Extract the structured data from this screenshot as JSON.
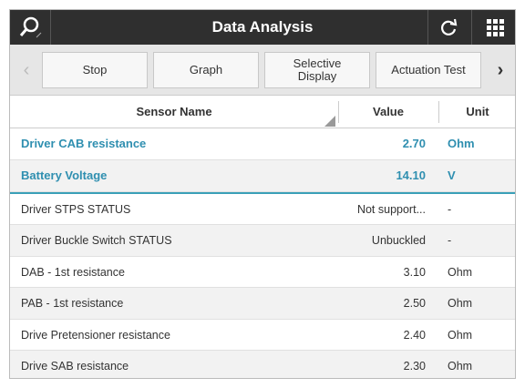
{
  "header": {
    "title": "Data Analysis"
  },
  "toolbar": {
    "buttons": [
      "Stop",
      "Graph",
      "Selective Display",
      "Actuation Test"
    ]
  },
  "table": {
    "columns": [
      "Sensor Name",
      "Value",
      "Unit"
    ],
    "highlighted_rows": [
      [
        "Driver CAB resistance",
        "2.70",
        "Ohm"
      ],
      [
        "Battery Voltage",
        "14.10",
        "V"
      ]
    ],
    "rows": [
      [
        "Driver STPS STATUS",
        "Not support...",
        "-"
      ],
      [
        "Driver Buckle Switch STATUS",
        "Unbuckled",
        "-"
      ],
      [
        "DAB - 1st resistance",
        "3.10",
        "Ohm"
      ],
      [
        "PAB - 1st resistance",
        "2.50",
        "Ohm"
      ],
      [
        "Drive Pretensioner resistance",
        "2.40",
        "Ohm"
      ],
      [
        "Drive SAB resistance",
        "2.30",
        "Ohm"
      ]
    ]
  }
}
